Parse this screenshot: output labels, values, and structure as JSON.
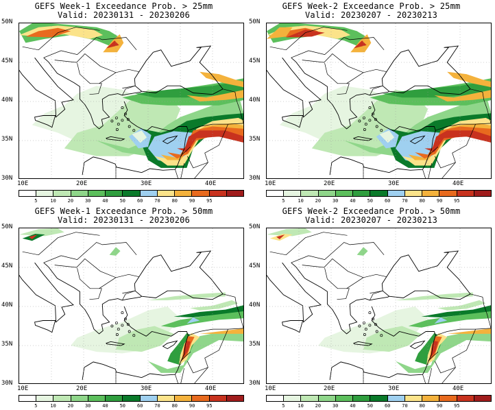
{
  "panels": [
    {
      "title": "GEFS Week-1 Exceedance Prob. > 25mm",
      "valid": "Valid: 20230131 - 20230206",
      "threshold_mm": 25,
      "week": 1
    },
    {
      "title": "GEFS Week-2 Exceedance Prob. > 25mm",
      "valid": "Valid: 20230207 - 20230213",
      "threshold_mm": 25,
      "week": 2
    },
    {
      "title": "GEFS Week-1 Exceedance Prob. > 50mm",
      "valid": "Valid: 20230131 - 20230206",
      "threshold_mm": 50,
      "week": 1
    },
    {
      "title": "GEFS Week-2 Exceedance Prob. > 50mm",
      "valid": "Valid: 20230207 - 20230213",
      "threshold_mm": 50,
      "week": 2
    }
  ],
  "lat_labels": [
    "50N",
    "45N",
    "40N",
    "35N",
    "30N"
  ],
  "lon_labels": [
    "10E",
    "20E",
    "30E",
    "40E"
  ],
  "colorbar": {
    "labels": [
      "5",
      "10",
      "20",
      "30",
      "40",
      "50",
      "60",
      "70",
      "80",
      "90",
      "95"
    ],
    "colors": [
      "#ffffff",
      "#e6f5e1",
      "#bfe8b4",
      "#8fd68a",
      "#5cbf5c",
      "#2f9e3e",
      "#0a7a2a",
      "#9fd0f0",
      "#fbe38a",
      "#f4b23c",
      "#e86a1e",
      "#c8321e",
      "#a01c1c"
    ]
  }
}
